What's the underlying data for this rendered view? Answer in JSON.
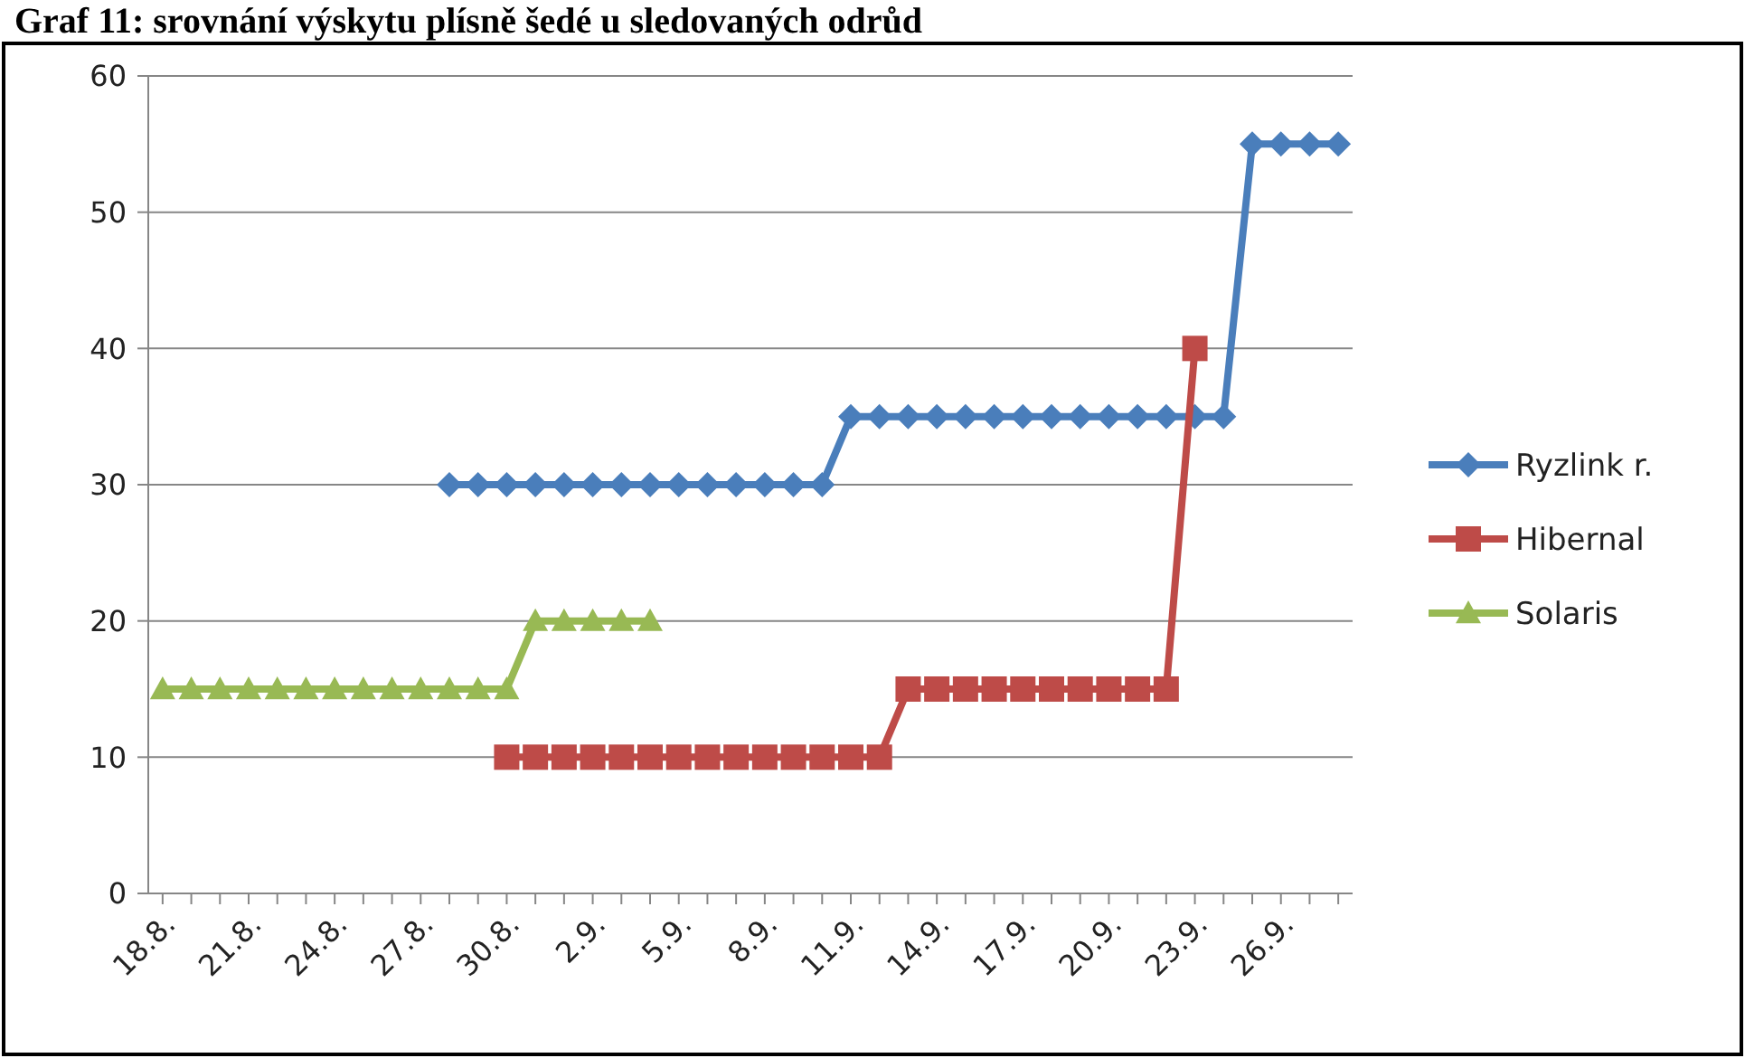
{
  "chart_data": {
    "type": "line",
    "title": "Graf 11: srovnání výskytu plísně šedé u sledovaných odrůd",
    "categories": [
      "18.8.",
      null,
      null,
      "21.8.",
      null,
      null,
      "24.8.",
      null,
      null,
      "27.8.",
      null,
      null,
      "30.8.",
      null,
      null,
      "2.9.",
      null,
      null,
      "5.9.",
      null,
      null,
      "8.9.",
      null,
      null,
      "11.9.",
      null,
      null,
      "14.9.",
      null,
      null,
      "17.9.",
      null,
      null,
      "20.9.",
      null,
      null,
      "23.9.",
      null,
      null,
      "26.9.",
      null,
      null
    ],
    "series": [
      {
        "name": "Ryzlink r.",
        "color": "#4a7ebb",
        "marker": "diamond",
        "values": [
          null,
          null,
          null,
          null,
          null,
          null,
          null,
          null,
          null,
          null,
          30,
          30,
          30,
          30,
          30,
          30,
          30,
          30,
          30,
          30,
          30,
          30,
          30,
          30,
          35,
          35,
          35,
          35,
          35,
          35,
          35,
          35,
          35,
          35,
          35,
          35,
          35,
          35,
          55,
          55,
          55,
          55
        ]
      },
      {
        "name": "Hibernal",
        "color": "#be4b48",
        "marker": "square",
        "values": [
          null,
          null,
          null,
          null,
          null,
          null,
          null,
          null,
          null,
          null,
          null,
          null,
          10,
          10,
          10,
          10,
          10,
          10,
          10,
          10,
          10,
          10,
          10,
          10,
          10,
          10,
          15,
          15,
          15,
          15,
          15,
          15,
          15,
          15,
          15,
          15,
          40,
          null,
          null,
          null,
          null,
          null
        ]
      },
      {
        "name": "Solaris",
        "color": "#98b954",
        "marker": "triangle",
        "values": [
          15,
          15,
          15,
          15,
          15,
          15,
          15,
          15,
          15,
          15,
          15,
          15,
          15,
          20,
          20,
          20,
          20,
          20,
          null,
          null,
          null,
          null,
          null,
          null,
          null,
          null,
          null,
          null,
          null,
          null,
          null,
          null,
          null,
          null,
          null,
          null,
          null,
          null,
          null,
          null,
          null,
          null
        ]
      }
    ],
    "ylim": [
      0,
      60
    ],
    "yticks": [
      0,
      10,
      20,
      30,
      40,
      50,
      60
    ],
    "grid": "y",
    "legend": "right"
  }
}
